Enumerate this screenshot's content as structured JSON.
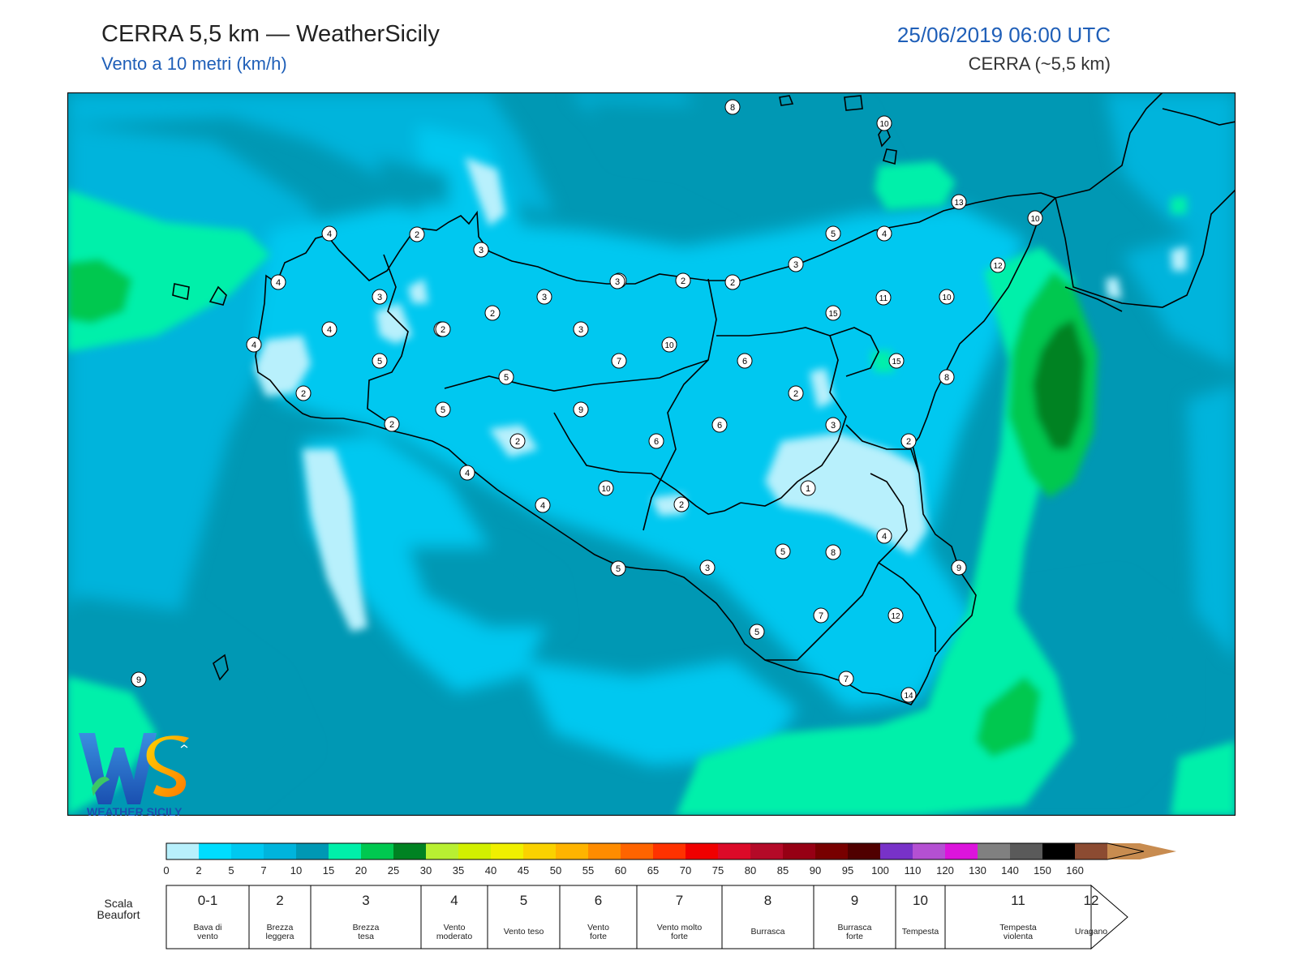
{
  "header": {
    "title": "CERRA 5,5 km — WeatherSicily",
    "subtitle": "Vento a 10 metri (km/h)",
    "datetime": "25/06/2019 06:00 UTC",
    "model": "CERRA (~5,5 km)"
  },
  "logo": {
    "text": "WEATHER SICILY",
    "mark": "WS"
  },
  "colorbar": {
    "ticks": [
      "0",
      "2",
      "5",
      "7",
      "10",
      "15",
      "20",
      "25",
      "30",
      "35",
      "40",
      "45",
      "50",
      "55",
      "60",
      "65",
      "70",
      "75",
      "80",
      "85",
      "90",
      "95",
      "100",
      "110",
      "120",
      "130",
      "140",
      "150",
      "160"
    ],
    "colors": [
      "#b8f0fc",
      "#00ddff",
      "#00c8f0",
      "#00b4dc",
      "#0098b4",
      "#00f0aa",
      "#00c850",
      "#008222",
      "#b8f032",
      "#d2f000",
      "#f0f000",
      "#fad200",
      "#ffb400",
      "#ff8c00",
      "#ff6400",
      "#ff3200",
      "#f00000",
      "#dc0a28",
      "#b40a28",
      "#960014",
      "#780000",
      "#500000",
      "#7832c8",
      "#b450d2",
      "#dc14dc",
      "#808080",
      "#5a5a5a",
      "#000000",
      "#8c4b32",
      "#c88c50"
    ]
  },
  "beaufort": {
    "label": "Scala Beaufort",
    "classes": [
      {
        "num": "0-1",
        "desc": [
          "Bava di",
          "vento"
        ]
      },
      {
        "num": "2",
        "desc": [
          "Brezza",
          "leggera"
        ]
      },
      {
        "num": "3",
        "desc": [
          "Brezza",
          "tesa"
        ]
      },
      {
        "num": "4",
        "desc": [
          "Vento",
          "moderato"
        ]
      },
      {
        "num": "5",
        "desc": [
          "Vento teso"
        ]
      },
      {
        "num": "6",
        "desc": [
          "Vento",
          "forte"
        ]
      },
      {
        "num": "7",
        "desc": [
          "Vento molto",
          "forte"
        ]
      },
      {
        "num": "8",
        "desc": [
          "Burrasca"
        ]
      },
      {
        "num": "9",
        "desc": [
          "Burrasca",
          "forte"
        ]
      },
      {
        "num": "10",
        "desc": [
          "Tempesta"
        ]
      },
      {
        "num": "11",
        "desc": [
          "Tempesta",
          "violenta"
        ]
      },
      {
        "num": "12",
        "desc": [
          "Uragano"
        ]
      }
    ]
  },
  "stations": [
    "8",
    "10",
    "13",
    "10",
    "12",
    "4",
    "2",
    "3",
    "5",
    "4",
    "4",
    "3",
    "3",
    "2",
    "3",
    "2",
    "3",
    "4",
    "4",
    "3",
    "2",
    "4",
    "3",
    "11",
    "10",
    "15",
    "5",
    "2",
    "5",
    "7",
    "10",
    "6",
    "15",
    "8",
    "2",
    "5",
    "9",
    "6",
    "2",
    "3",
    "2",
    "2",
    "6",
    "1",
    "4",
    "4",
    "10",
    "2",
    "2",
    "4",
    "5",
    "3",
    "5",
    "8",
    "9",
    "7",
    "12",
    "5",
    "7",
    "14",
    "9"
  ],
  "colors": {
    "sea_base": "#0098b4",
    "title_blue": "#1f5fb8"
  }
}
